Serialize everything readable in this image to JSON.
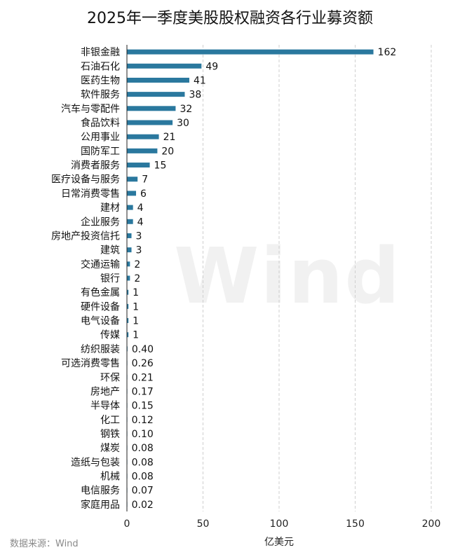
{
  "title": "2025年一季度美股股权融资各行业募资额",
  "source": "数据来源：Wind",
  "watermark": "Wind",
  "colors": {
    "bar": "#2a789e",
    "grid": "#cfcfcf",
    "axis": "#222222"
  },
  "chart_data": {
    "type": "bar",
    "orientation": "horizontal",
    "title": "2025年一季度美股股权融资各行业募资额",
    "xlabel": "亿美元",
    "ylabel": "",
    "xlim": [
      0,
      200
    ],
    "xticks": [
      0,
      50,
      100,
      150,
      200
    ],
    "grid": "vertical dashed",
    "categories": [
      "非银金融",
      "石油石化",
      "医药生物",
      "软件服务",
      "汽车与零配件",
      "食品饮料",
      "公用事业",
      "国防军工",
      "消费者服务",
      "医疗设备与服务",
      "日常消费零售",
      "建材",
      "企业服务",
      "房地产投资信托",
      "建筑",
      "交通运输",
      "银行",
      "有色金属",
      "硬件设备",
      "电气设备",
      "传媒",
      "纺织服装",
      "可选消费零售",
      "环保",
      "房地产",
      "半导体",
      "化工",
      "钢铁",
      "煤炭",
      "造纸与包装",
      "机械",
      "电信服务",
      "家庭用品"
    ],
    "values": [
      162,
      49,
      41,
      38,
      32,
      30,
      21,
      20,
      15,
      7,
      6,
      4,
      4,
      3,
      3,
      2,
      2,
      1,
      1,
      1,
      1,
      0.4,
      0.26,
      0.21,
      0.17,
      0.15,
      0.12,
      0.1,
      0.08,
      0.08,
      0.08,
      0.07,
      0.02
    ],
    "value_labels": [
      "162",
      "49",
      "41",
      "38",
      "32",
      "30",
      "21",
      "20",
      "15",
      "7",
      "6",
      "4",
      "4",
      "3",
      "3",
      "2",
      "2",
      "1",
      "1",
      "1",
      "1",
      "0.40",
      "0.26",
      "0.21",
      "0.17",
      "0.15",
      "0.12",
      "0.10",
      "0.08",
      "0.08",
      "0.08",
      "0.07",
      "0.02"
    ]
  }
}
